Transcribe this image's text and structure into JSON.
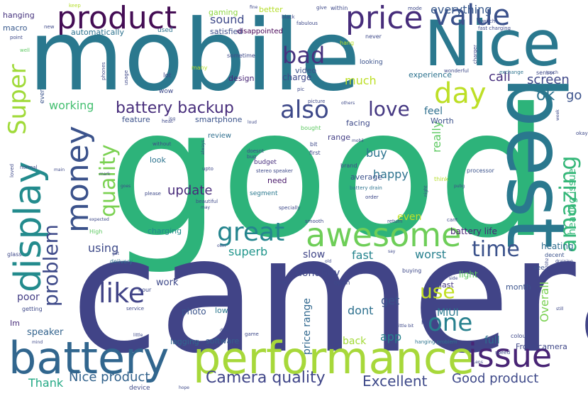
{
  "words": [
    {
      "text": "good",
      "color": "#2db37a"
    },
    {
      "text": "camera",
      "color": "#414487"
    },
    {
      "text": "mobile",
      "color": "#2a788e"
    },
    {
      "text": "Nice",
      "color": "#2a788e"
    },
    {
      "text": "best",
      "color": "#2a788e"
    },
    {
      "text": "battery",
      "color": "#31668e"
    },
    {
      "text": "performance",
      "color": "#a7d83a"
    },
    {
      "text": "product",
      "color": "#440d54"
    },
    {
      "text": "price",
      "color": "#472d7b"
    },
    {
      "text": "value",
      "color": "#3b518b"
    },
    {
      "text": "display",
      "color": "#238b8d"
    },
    {
      "text": "awesome",
      "color": "#6ece58"
    },
    {
      "text": "issue",
      "color": "#482475"
    },
    {
      "text": "money",
      "color": "#3b528b"
    },
    {
      "text": "day",
      "color": "#bddf26"
    },
    {
      "text": "Super",
      "color": "#a0da39"
    },
    {
      "text": "problem",
      "color": "#3e4a89"
    },
    {
      "text": "quality",
      "color": "#7ad151"
    },
    {
      "text": "bad",
      "color": "#46327e"
    },
    {
      "text": "also",
      "color": "#3e4989"
    },
    {
      "text": "great",
      "color": "#25858e"
    },
    {
      "text": "like",
      "color": "#414487"
    },
    {
      "text": "time",
      "color": "#3b528b"
    },
    {
      "text": "one",
      "color": "#27808e"
    },
    {
      "text": "amazing",
      "color": "#35b779"
    },
    {
      "text": "love",
      "color": "#453882"
    },
    {
      "text": "battery backup",
      "color": "#472d7b"
    },
    {
      "text": "sound",
      "color": "#3e4989"
    },
    {
      "text": "use",
      "color": "#c2df23"
    },
    {
      "text": "ok",
      "color": "#2c728e"
    },
    {
      "text": "screen",
      "color": "#3f4788"
    },
    {
      "text": "everything",
      "color": "#38598c"
    },
    {
      "text": "Camera quality",
      "color": "#404688"
    },
    {
      "text": "Nice product",
      "color": "#33638d"
    },
    {
      "text": "Good product",
      "color": "#3e4989"
    },
    {
      "text": "Excellent",
      "color": "#3e4989"
    },
    {
      "text": "superb",
      "color": "#1f958b"
    },
    {
      "text": "update",
      "color": "#472a7a"
    },
    {
      "text": "working",
      "color": "#44bf70"
    },
    {
      "text": "much",
      "color": "#bddf26"
    },
    {
      "text": "call",
      "color": "#472f7d"
    },
    {
      "text": "go",
      "color": "#3b528b"
    },
    {
      "text": "feel",
      "color": "#2e6f8e"
    },
    {
      "text": "buy",
      "color": "#2c738e"
    },
    {
      "text": "happy",
      "color": "#2c728e"
    },
    {
      "text": "really",
      "color": "#5ec962"
    },
    {
      "text": "dont",
      "color": "#2d708e"
    },
    {
      "text": "get",
      "color": "#3a538b"
    },
    {
      "text": "fast",
      "color": "#25848e"
    },
    {
      "text": "worst",
      "color": "#27808e"
    },
    {
      "text": "using",
      "color": "#3e4a89"
    },
    {
      "text": "poor",
      "color": "#433e85"
    },
    {
      "text": "Overall",
      "color": "#7ad151"
    },
    {
      "text": "heating issue",
      "color": "#35b779"
    },
    {
      "text": "MIUI",
      "color": "#2a788e"
    },
    {
      "text": "price range",
      "color": "#31688e"
    },
    {
      "text": "app",
      "color": "#26828e"
    },
    {
      "text": "Thank",
      "color": "#22a884"
    },
    {
      "text": "back",
      "color": "#a2da37"
    },
    {
      "text": "full",
      "color": "#2d708e"
    },
    {
      "text": "speaker",
      "color": "#33638d"
    },
    {
      "text": "charging",
      "color": "#238a8d"
    },
    {
      "text": "work",
      "color": "#3e4989"
    },
    {
      "text": "photo",
      "color": "#3a548c"
    },
    {
      "text": "low",
      "color": "#2a778e"
    },
    {
      "text": "battery life",
      "color": "#482475"
    },
    {
      "text": "heating",
      "color": "#2e6d8e"
    },
    {
      "text": "dont buy",
      "color": "#3f4788"
    },
    {
      "text": "slow",
      "color": "#404588"
    },
    {
      "text": "even",
      "color": "#bddf26"
    },
    {
      "text": "light",
      "color": "#5ec962"
    },
    {
      "text": "last",
      "color": "#453781"
    },
    {
      "text": "month",
      "color": "#3a538b"
    },
    {
      "text": "lagging",
      "color": "#31688e"
    },
    {
      "text": "software",
      "color": "#355f8d"
    },
    {
      "text": "Front camera",
      "color": "#3f4788"
    },
    {
      "text": "hanging",
      "color": "#46337e"
    },
    {
      "text": "macro",
      "color": "#38598c"
    },
    {
      "text": "gaming",
      "color": "#8fd744"
    },
    {
      "text": "better",
      "color": "#b5de2b"
    },
    {
      "text": "satisfied",
      "color": "#3d4d8a"
    },
    {
      "text": "disappointed",
      "color": "#440154"
    },
    {
      "text": "automatically",
      "color": "#2c728e"
    },
    {
      "text": "design",
      "color": "#482576"
    },
    {
      "text": "charge",
      "color": "#3f4889"
    },
    {
      "text": "video",
      "color": "#3b518b"
    },
    {
      "text": "experience",
      "color": "#2c728e"
    },
    {
      "text": "feature",
      "color": "#3b528b"
    },
    {
      "text": "smartphone",
      "color": "#3a538b"
    },
    {
      "text": "review",
      "color": "#2e6e8e"
    },
    {
      "text": "facing",
      "color": "#3e4a89"
    },
    {
      "text": "Worth",
      "color": "#3b518b"
    },
    {
      "text": "range",
      "color": "#433e85"
    },
    {
      "text": "look",
      "color": "#2c738e"
    },
    {
      "text": "need",
      "color": "#481769"
    },
    {
      "text": "average",
      "color": "#3b528b"
    },
    {
      "text": "budget",
      "color": "#472f7d"
    },
    {
      "text": "segment",
      "color": "#2a788e"
    },
    {
      "text": "Im",
      "color": "#472c7a"
    },
    {
      "text": "ever",
      "color": "#3a538b"
    },
    {
      "text": "wow",
      "color": "#3e4989"
    },
    {
      "text": "lot",
      "color": "#3e4989"
    },
    {
      "text": "used",
      "color": "#2c738e"
    },
    {
      "text": "sometime",
      "color": "#3e4989"
    },
    {
      "text": "looking",
      "color": "#3b528b"
    },
    {
      "text": "never",
      "color": "#3e4989"
    },
    {
      "text": "first",
      "color": "#3e4989"
    },
    {
      "text": "brand",
      "color": "#3e4989"
    },
    {
      "text": "processor",
      "color": "#3b528b"
    },
    {
      "text": "bit",
      "color": "#3e4989"
    },
    {
      "text": "hang",
      "color": "#b5de2b"
    },
    {
      "text": "bought",
      "color": "#5ec962"
    },
    {
      "text": "think",
      "color": "#b5de2b"
    },
    {
      "text": "open",
      "color": "#3e4989"
    },
    {
      "text": "buying",
      "color": "#3e4989"
    },
    {
      "text": "see",
      "color": "#3b528b"
    },
    {
      "text": "delivery",
      "color": "#2c738e"
    },
    {
      "text": "glass",
      "color": "#3e4989"
    },
    {
      "text": "hour",
      "color": "#3e4989"
    },
    {
      "text": "MI",
      "color": "#3e4989"
    },
    {
      "text": "game",
      "color": "#3e4989"
    },
    {
      "text": "device",
      "color": "#3e4989"
    },
    {
      "text": "sensor",
      "color": "#3e4989"
    },
    {
      "text": "decent",
      "color": "#3b528b"
    },
    {
      "text": "hanging problem",
      "color": "#2c738e"
    },
    {
      "text": "getting",
      "color": "#3e4989"
    },
    {
      "text": "High",
      "color": "#5ec962"
    },
    {
      "text": "normal",
      "color": "#3e4989"
    },
    {
      "text": "many",
      "color": "#b5de2b"
    },
    {
      "text": "doesnt",
      "color": "#3e4989"
    },
    {
      "text": "bug",
      "color": "#3e4989"
    },
    {
      "text": "upto",
      "color": "#3e4989"
    },
    {
      "text": "colour",
      "color": "#3e4989"
    },
    {
      "text": "within",
      "color": "#3e4989"
    },
    {
      "text": "give",
      "color": "#3e4989"
    },
    {
      "text": "mode",
      "color": "#3e4989"
    },
    {
      "text": "okay",
      "color": "#3e4989"
    },
    {
      "text": "exchange",
      "color": "#2c738e"
    },
    {
      "text": "loved",
      "color": "#3e4989"
    },
    {
      "text": "stereo speaker",
      "color": "#3e4989"
    },
    {
      "text": "battery drain",
      "color": "#2c738e"
    },
    {
      "text": "heat",
      "color": "#3e4989"
    },
    {
      "text": "specially",
      "color": "#3e4989"
    },
    {
      "text": "smooth",
      "color": "#3e4989"
    },
    {
      "text": "beautiful",
      "color": "#3e4989"
    },
    {
      "text": "please",
      "color": "#3e4989"
    },
    {
      "text": "charger",
      "color": "#3e4989"
    },
    {
      "text": "speed",
      "color": "#3e4989"
    },
    {
      "text": "fast charging",
      "color": "#3e4989"
    },
    {
      "text": "cant",
      "color": "#3e4989"
    },
    {
      "text": "order",
      "color": "#3e4989"
    },
    {
      "text": "service",
      "color": "#3e4989"
    },
    {
      "text": "picture",
      "color": "#3e4989"
    },
    {
      "text": "return",
      "color": "#3e4989"
    },
    {
      "text": "wonderful",
      "color": "#3e4989"
    },
    {
      "text": "without",
      "color": "#3e4989"
    },
    {
      "text": "fabulous",
      "color": "#3e4989"
    },
    {
      "text": "black",
      "color": "#3e4989"
    },
    {
      "text": "well",
      "color": "#5ec962"
    },
    {
      "text": "point",
      "color": "#3e4989"
    },
    {
      "text": "new",
      "color": "#3e4989"
    },
    {
      "text": "keep",
      "color": "#b5de2b"
    },
    {
      "text": "switch",
      "color": "#3e4989"
    },
    {
      "text": "phones",
      "color": "#3e4989"
    },
    {
      "text": "usage",
      "color": "#3e4989"
    },
    {
      "text": "pic",
      "color": "#3e4989"
    },
    {
      "text": "others",
      "color": "#3e4989"
    },
    {
      "text": "loud",
      "color": "#3e4989"
    },
    {
      "text": "goes",
      "color": "#3e4989"
    },
    {
      "text": "expected",
      "color": "#3e4989"
    },
    {
      "text": "may",
      "color": "#3e4989"
    },
    {
      "text": "draining",
      "color": "#3e4989"
    },
    {
      "text": "120hz",
      "color": "#3e4989"
    },
    {
      "text": "say",
      "color": "#3e4989"
    },
    {
      "text": "old",
      "color": "#3e4989"
    },
    {
      "text": "side",
      "color": "#3e4989"
    },
    {
      "text": "long",
      "color": "#3e4989"
    },
    {
      "text": "still",
      "color": "#3e4989"
    },
    {
      "text": "little bit",
      "color": "#3e4989"
    },
    {
      "text": "dual",
      "color": "#3e4989"
    },
    {
      "text": "mind",
      "color": "#3e4989"
    },
    {
      "text": "little",
      "color": "#3e4989"
    },
    {
      "text": "hope",
      "color": "#3e4989"
    },
    {
      "text": "Lens",
      "color": "#3e4989"
    },
    {
      "text": "week",
      "color": "#3e4989"
    },
    {
      "text": "night",
      "color": "#3e4989"
    },
    {
      "text": "osm",
      "color": "#3e4989"
    },
    {
      "text": "got",
      "color": "#3e4989"
    },
    {
      "text": "mark",
      "color": "#3e4989"
    },
    {
      "text": "main",
      "color": "#3e4989"
    },
    {
      "text": "always",
      "color": "#3e4989"
    },
    {
      "text": "touch",
      "color": "#3e4989"
    },
    {
      "text": "fine",
      "color": "#3e4989"
    },
    {
      "text": "ing",
      "color": "#3e4989"
    },
    {
      "text": "mobil",
      "color": "#3e4989"
    },
    {
      "text": "pubg",
      "color": "#3e4989"
    }
  ]
}
